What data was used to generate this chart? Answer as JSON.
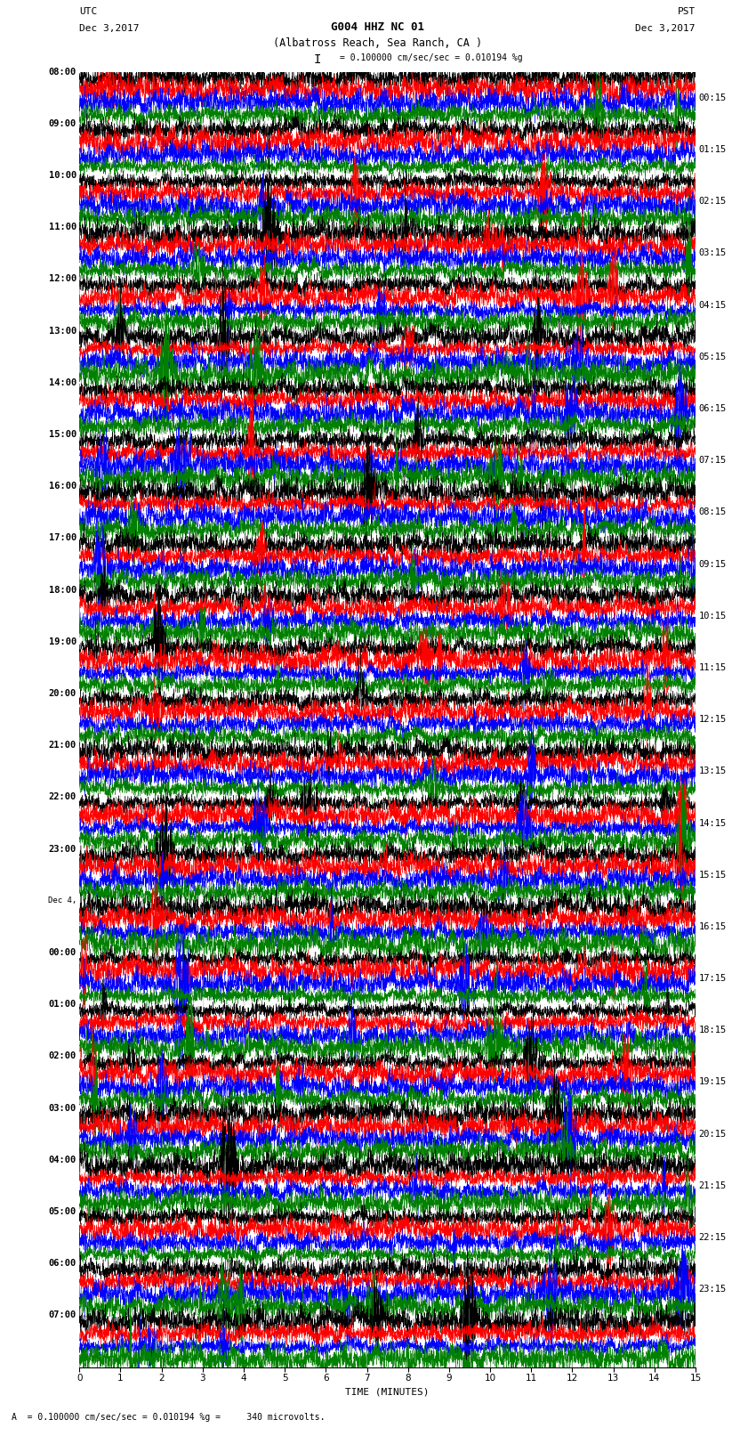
{
  "title_line1": "G004 HHZ NC 01",
  "title_line2": "(Albatross Reach, Sea Ranch, CA )",
  "scale_text": "= 0.100000 cm/sec/sec = 0.010194 %g",
  "bottom_text": "A  = 0.100000 cm/sec/sec = 0.010194 %g =     340 microvolts.",
  "utc_label": "UTC",
  "utc_date": "Dec 3,2017",
  "pst_label": "PST",
  "pst_date": "Dec 3,2017",
  "xlabel": "TIME (MINUTES)",
  "left_times": [
    "08:00",
    "09:00",
    "10:00",
    "11:00",
    "12:00",
    "13:00",
    "14:00",
    "15:00",
    "16:00",
    "17:00",
    "18:00",
    "19:00",
    "20:00",
    "21:00",
    "22:00",
    "23:00",
    "Dec 4,",
    "00:00",
    "01:00",
    "02:00",
    "03:00",
    "04:00",
    "05:00",
    "06:00",
    "07:00"
  ],
  "right_times": [
    "00:15",
    "01:15",
    "02:15",
    "03:15",
    "04:15",
    "05:15",
    "06:15",
    "07:15",
    "08:15",
    "09:15",
    "10:15",
    "11:15",
    "12:15",
    "13:15",
    "14:15",
    "15:15",
    "16:15",
    "17:15",
    "18:15",
    "19:15",
    "20:15",
    "21:15",
    "22:15",
    "23:15"
  ],
  "trace_colors": [
    "black",
    "red",
    "blue",
    "green"
  ],
  "n_rows": 25,
  "traces_per_row": 4,
  "minutes": 15,
  "bg_color": "white",
  "figwidth": 8.5,
  "figheight": 16.13,
  "dpi": 100
}
